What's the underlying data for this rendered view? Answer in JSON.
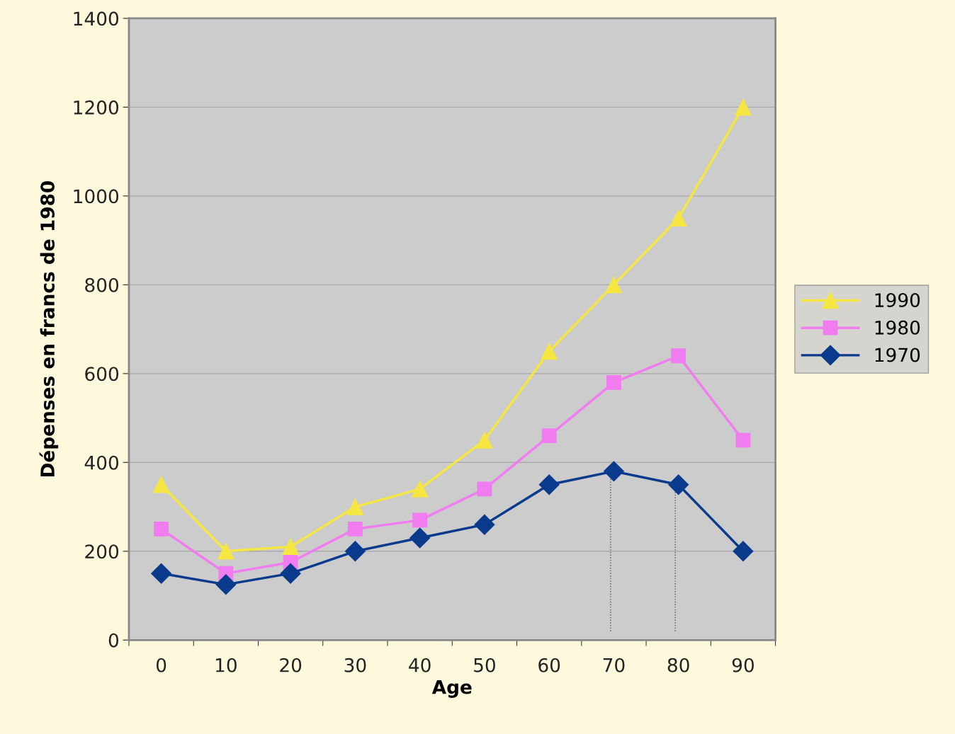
{
  "chart_data": {
    "type": "line",
    "xlabel": "Age",
    "ylabel": "Dépenses en francs de 1980",
    "categories": [
      "0",
      "10",
      "20",
      "30",
      "40",
      "50",
      "60",
      "70",
      "80",
      "90"
    ],
    "series": [
      {
        "name": "1990",
        "color": "#f5e642",
        "marker": "triangle",
        "values": [
          350,
          200,
          210,
          300,
          340,
          450,
          650,
          800,
          950,
          1200
        ]
      },
      {
        "name": "1980",
        "color": "#f07cf0",
        "marker": "square",
        "values": [
          250,
          150,
          175,
          250,
          270,
          340,
          460,
          580,
          640,
          450
        ]
      },
      {
        "name": "1970",
        "color": "#0a3a8c",
        "marker": "diamond",
        "values": [
          150,
          125,
          150,
          200,
          230,
          260,
          350,
          380,
          350,
          200
        ]
      }
    ],
    "ylim": [
      0,
      1400
    ],
    "yticks": [
      0,
      200,
      400,
      600,
      800,
      1000,
      1200,
      1400
    ],
    "ref_lines": [
      {
        "axis": "x",
        "value": "70",
        "line_style": "dotted",
        "color": "#555555"
      },
      {
        "axis": "x",
        "value": "80",
        "line_style": "dotted",
        "color": "#555555"
      }
    ],
    "grid": "y",
    "legend": "right",
    "line_style": "solid"
  }
}
